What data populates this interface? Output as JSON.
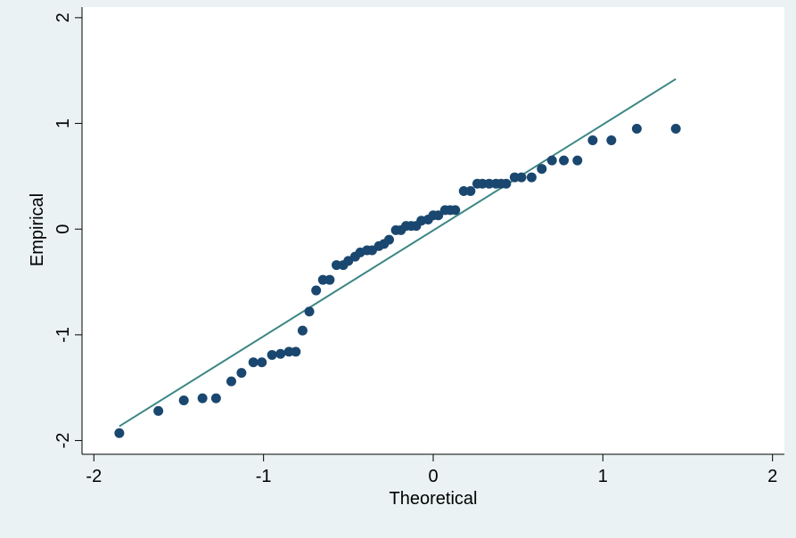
{
  "chart_data": {
    "type": "scatter",
    "xlabel": "Theoretical",
    "ylabel": "Empirical",
    "xlim": [
      -2.07,
      2.07
    ],
    "ylim": [
      -2.13,
      2.1
    ],
    "xticks": [
      -2,
      -1,
      0,
      1,
      2
    ],
    "yticks": [
      -2,
      -1,
      0,
      1,
      2
    ],
    "grid": false,
    "series": [
      {
        "type": "scatter",
        "color": "#1a476f",
        "x": [
          -1.85,
          -1.62,
          -1.47,
          -1.36,
          -1.28,
          -1.19,
          -1.13,
          -1.06,
          -1.01,
          -0.95,
          -0.9,
          -0.85,
          -0.81,
          -0.77,
          -0.73,
          -0.69,
          -0.65,
          -0.61,
          -0.57,
          -0.53,
          -0.5,
          -0.46,
          -0.43,
          -0.39,
          -0.36,
          -0.32,
          -0.29,
          -0.26,
          -0.22,
          -0.19,
          -0.16,
          -0.13,
          -0.1,
          -0.07,
          -0.03,
          0.0,
          0.03,
          0.07,
          0.1,
          0.13,
          0.18,
          0.22,
          0.26,
          0.29,
          0.33,
          0.37,
          0.4,
          0.43,
          0.48,
          0.52,
          0.58,
          0.64,
          0.7,
          0.77,
          0.85,
          0.94,
          1.05,
          1.2,
          1.43
        ],
        "values": [
          -1.93,
          -1.72,
          -1.62,
          -1.6,
          -1.6,
          -1.44,
          -1.36,
          -1.26,
          -1.26,
          -1.19,
          -1.18,
          -1.16,
          -1.16,
          -0.96,
          -0.78,
          -0.58,
          -0.48,
          -0.48,
          -0.34,
          -0.34,
          -0.3,
          -0.26,
          -0.22,
          -0.2,
          -0.2,
          -0.16,
          -0.14,
          -0.1,
          -0.01,
          -0.01,
          0.03,
          0.03,
          0.03,
          0.08,
          0.09,
          0.13,
          0.13,
          0.18,
          0.18,
          0.18,
          0.36,
          0.36,
          0.43,
          0.43,
          0.43,
          0.43,
          0.43,
          0.43,
          0.49,
          0.49,
          0.49,
          0.57,
          0.65,
          0.65,
          0.65,
          0.84,
          0.84,
          0.95,
          0.95
        ]
      },
      {
        "type": "line",
        "color": "#3a8784",
        "x": [
          -1.85,
          1.43
        ],
        "values": [
          -1.865,
          1.42
        ]
      }
    ]
  }
}
